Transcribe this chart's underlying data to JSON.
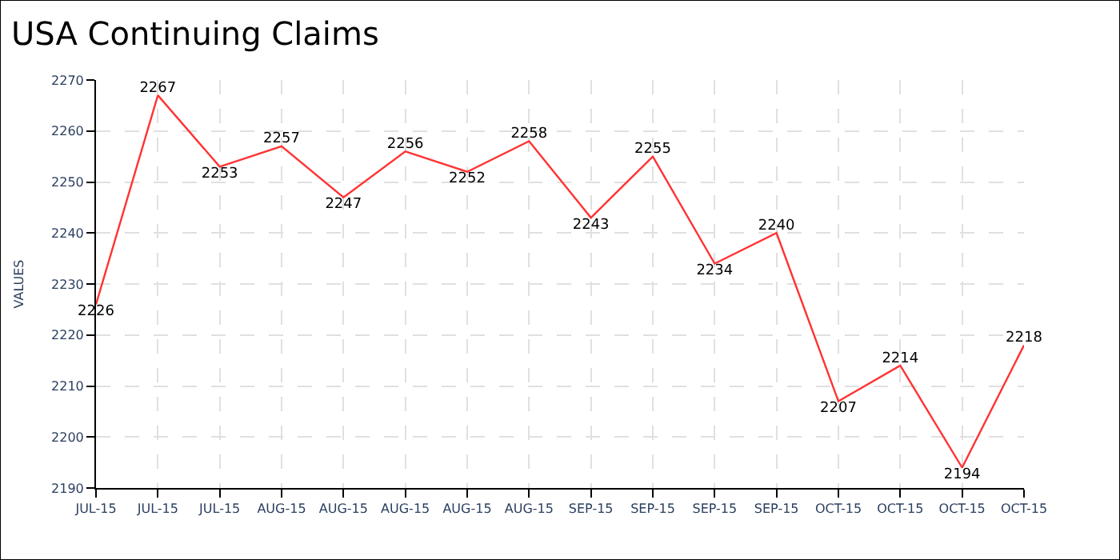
{
  "chart_data": {
    "type": "line",
    "title": "USA Continuing Claims",
    "ylabel": "VALUES",
    "categories": [
      "JUL-15",
      "JUL-15",
      "JUL-15",
      "AUG-15",
      "AUG-15",
      "AUG-15",
      "AUG-15",
      "AUG-15",
      "SEP-15",
      "SEP-15",
      "SEP-15",
      "SEP-15",
      "OCT-15",
      "OCT-15",
      "OCT-15",
      "OCT-15"
    ],
    "series": [
      {
        "color": "#ff3333",
        "values": [
          2226,
          2267,
          2253,
          2257,
          2247,
          2256,
          2252,
          2258,
          2243,
          2255,
          2234,
          2240,
          2207,
          2214,
          2194,
          2218
        ]
      }
    ],
    "ylim": [
      2190,
      2270
    ],
    "yticks": [
      2190,
      2200,
      2210,
      2220,
      2230,
      2240,
      2250,
      2260,
      2270
    ],
    "grid": true,
    "data_labels": true,
    "marker": "none",
    "line_style": "solid"
  }
}
